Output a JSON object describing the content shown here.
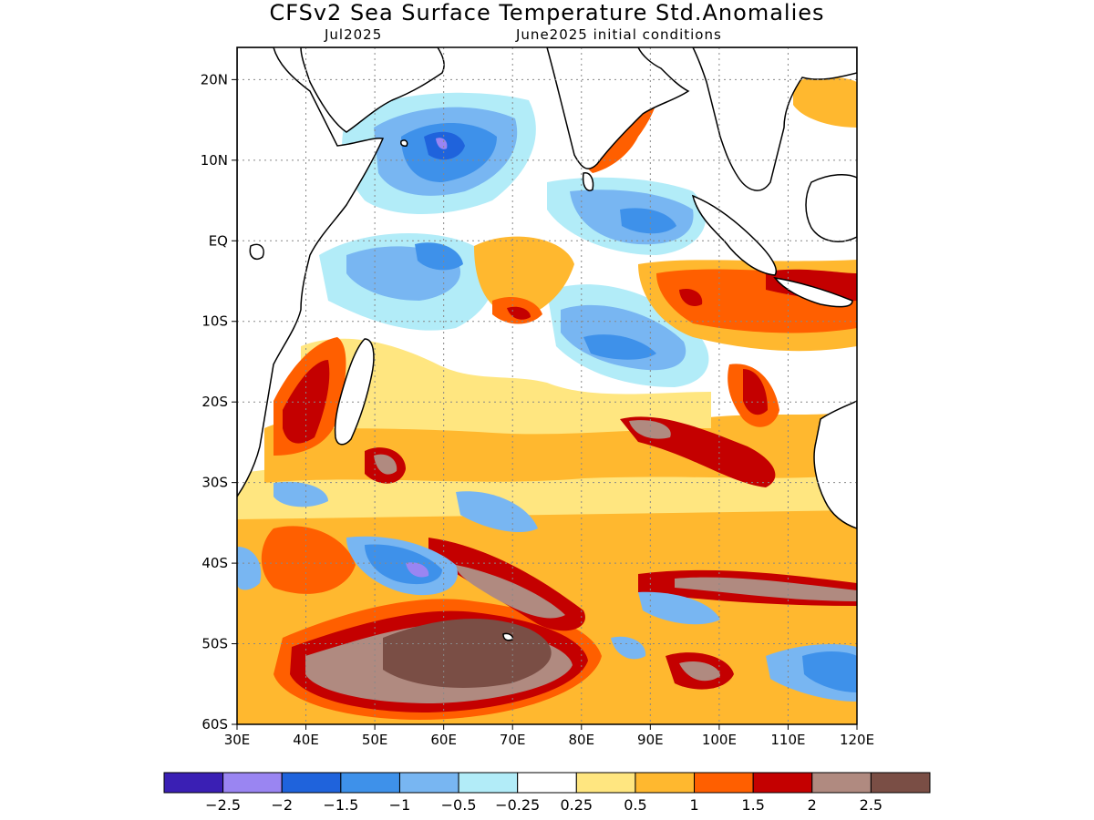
{
  "header": {
    "title": "CFSv2 Sea Surface Temperature Std.Anomalies",
    "valid_month": "Jul2025",
    "init_conditions": "June2025 initial conditions"
  },
  "map": {
    "lon_range": [
      30,
      120
    ],
    "lat_range": [
      -60,
      24
    ],
    "lon_ticks": [
      {
        "value": 30,
        "label": "30E"
      },
      {
        "value": 40,
        "label": "40E"
      },
      {
        "value": 50,
        "label": "50E"
      },
      {
        "value": 60,
        "label": "60E"
      },
      {
        "value": 70,
        "label": "70E"
      },
      {
        "value": 80,
        "label": "80E"
      },
      {
        "value": 90,
        "label": "90E"
      },
      {
        "value": 100,
        "label": "100E"
      },
      {
        "value": 110,
        "label": "110E"
      },
      {
        "value": 120,
        "label": "120E"
      }
    ],
    "lat_ticks": [
      {
        "value": 20,
        "label": "20N"
      },
      {
        "value": 10,
        "label": "10N"
      },
      {
        "value": 0,
        "label": "EQ"
      },
      {
        "value": -10,
        "label": "10S"
      },
      {
        "value": -20,
        "label": "20S"
      },
      {
        "value": -30,
        "label": "30S"
      },
      {
        "value": -40,
        "label": "40S"
      },
      {
        "value": -50,
        "label": "50S"
      },
      {
        "value": -60,
        "label": "60S"
      }
    ],
    "gridlines": "dotted"
  },
  "legend": {
    "colors": [
      "#3a1fb4",
      "#9a85f2",
      "#1f63dc",
      "#3e91ea",
      "#78b6f2",
      "#b2ecf8",
      "#ffffff",
      "#ffe680",
      "#ffb82f",
      "#ff5f00",
      "#c40000",
      "#b08a80",
      "#7a4e45"
    ],
    "labels": [
      "−2.5",
      "−2",
      "−1.5",
      "−1",
      "−0.5",
      "−0.25",
      "0.25",
      "0.5",
      "1",
      "1.5",
      "2",
      "2.5"
    ]
  }
}
